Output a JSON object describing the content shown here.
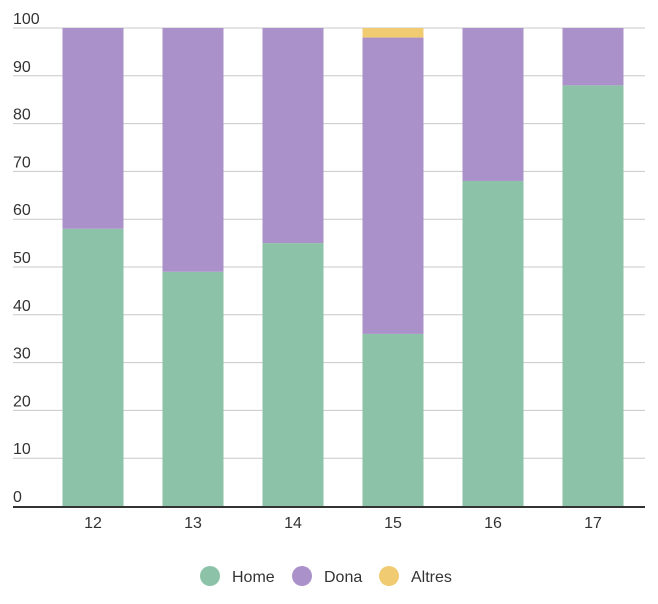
{
  "chart_data": {
    "type": "bar",
    "stacked": true,
    "categories": [
      "12",
      "13",
      "14",
      "15",
      "16",
      "17"
    ],
    "series": [
      {
        "name": "Home",
        "color": "#8cc3a8",
        "values": [
          58,
          49,
          55,
          36,
          68,
          88
        ]
      },
      {
        "name": "Dona",
        "color": "#ab91c9",
        "values": [
          42,
          51,
          45,
          62,
          32,
          12
        ]
      },
      {
        "name": "Altres",
        "color": "#f1cb72",
        "values": [
          0,
          0,
          0,
          2,
          0,
          0
        ]
      }
    ],
    "ylim": [
      0,
      100
    ],
    "yticks": [
      0,
      10,
      20,
      30,
      40,
      50,
      60,
      70,
      80,
      90,
      100
    ],
    "grid": true,
    "legend_position": "bottom-center",
    "axis_color": "#333333",
    "grid_color": "#c8c8c8"
  }
}
